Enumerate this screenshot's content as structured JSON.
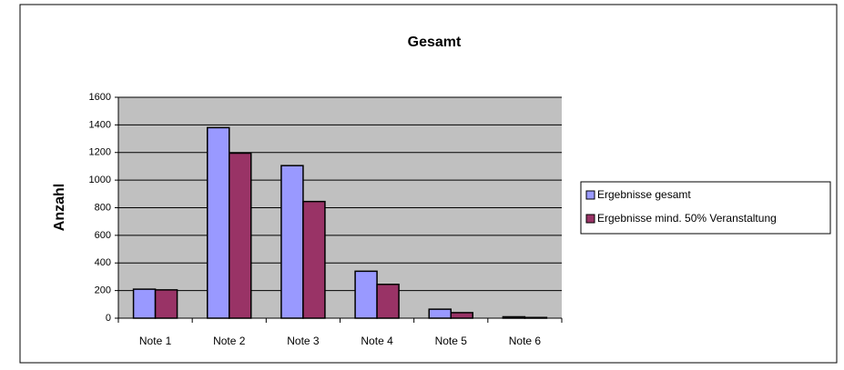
{
  "chart_data": {
    "type": "bar",
    "title": "Gesamt",
    "y_label": "Anzahl",
    "categories": [
      "Note 1",
      "Note 2",
      "Note 3",
      "Note 4",
      "Note 5",
      "Note 6"
    ],
    "series": [
      {
        "name": "Ergebnisse gesamt",
        "color": "#9999ff",
        "values": [
          210,
          1380,
          1105,
          340,
          65,
          10
        ]
      },
      {
        "name": "Ergebnisse mind. 50% Veranstaltung",
        "color": "#993366",
        "values": [
          205,
          1195,
          845,
          245,
          40,
          5
        ]
      }
    ],
    "ylim": [
      0,
      1600
    ],
    "yticks": [
      0,
      200,
      400,
      600,
      800,
      1000,
      1200,
      1400,
      1600
    ],
    "grid": true,
    "legend": "right"
  }
}
